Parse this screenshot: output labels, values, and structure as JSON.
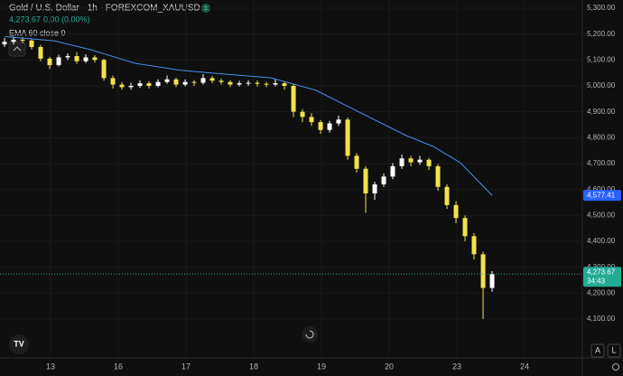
{
  "chart_data": {
    "type": "candlestick",
    "title": "Gold / U.S. Dollar · 1h · FOREXCOM_XAUUSD",
    "legend_price": "4,273.67",
    "legend_change": "0.00 (0.00%)",
    "indicator": "EMA 60 close 0",
    "up_color": "#ffffff",
    "down_color": "#f2e34b",
    "ema_color": "#4a8fe7",
    "grid": true,
    "xlim": [
      -0.747,
      7.853
    ],
    "xticks": [
      {
        "value": 0,
        "label": "13"
      },
      {
        "value": 1,
        "label": "16"
      },
      {
        "value": 2,
        "label": "17"
      },
      {
        "value": 3,
        "label": "18"
      },
      {
        "value": 4,
        "label": "19"
      },
      {
        "value": 5,
        "label": "20"
      },
      {
        "value": 6,
        "label": "23"
      },
      {
        "value": 7,
        "label": "24"
      }
    ],
    "ylim": [
      3953.5,
      5331.4
    ],
    "yticks": [
      {
        "value": 4100,
        "label": "4,100.00"
      },
      {
        "value": 4200,
        "label": "4,200.00"
      },
      {
        "value": 4300,
        "label": "4,300.00"
      },
      {
        "value": 4400,
        "label": "4,400.00"
      },
      {
        "value": 4500,
        "label": "4,500.00"
      },
      {
        "value": 4600,
        "label": "4,600.00"
      },
      {
        "value": 4700,
        "label": "4,700.00"
      },
      {
        "value": 4800,
        "label": "4,800.00"
      },
      {
        "value": 4900,
        "label": "4,900.00"
      },
      {
        "value": 5000,
        "label": "5,000.00"
      },
      {
        "value": 5100,
        "label": "5,100.00"
      },
      {
        "value": 5200,
        "label": "5,200.00"
      },
      {
        "value": 5300,
        "label": "5,300.00"
      }
    ],
    "candles": {
      "x": [
        -0.68,
        -0.547,
        -0.413,
        -0.28,
        -0.147,
        -0.013,
        0.12,
        0.253,
        0.387,
        0.52,
        0.653,
        0.787,
        0.92,
        1.053,
        1.187,
        1.32,
        1.453,
        1.587,
        1.72,
        1.853,
        1.987,
        2.12,
        2.253,
        2.387,
        2.52,
        2.653,
        2.787,
        2.92,
        3.053,
        3.187,
        3.32,
        3.453,
        3.587,
        3.72,
        3.853,
        3.987,
        4.12,
        4.253,
        4.387,
        4.52,
        4.653,
        4.787,
        4.92,
        5.053,
        5.187,
        5.32,
        5.453,
        5.587,
        5.72,
        5.853,
        5.987,
        6.12,
        6.253,
        6.387,
        6.52
      ],
      "open": [
        5160,
        5170,
        5178,
        5175,
        5150,
        5105,
        5080,
        5110,
        5115,
        5095,
        5110,
        5100,
        5030,
        5005,
        4995,
        5000,
        5010,
        5000,
        5015,
        5025,
        5005,
        5015,
        5012,
        5030,
        5020,
        5015,
        5005,
        5010,
        5012,
        5008,
        5005,
        5010,
        5000,
        4900,
        4880,
        4860,
        4830,
        4855,
        4870,
        4730,
        4680,
        4585,
        4620,
        4650,
        4690,
        4720,
        4705,
        4715,
        4690,
        4610,
        4540,
        4490,
        4420,
        4350,
        4220
      ],
      "high": [
        5185,
        5190,
        5188,
        5182,
        5158,
        5112,
        5120,
        5125,
        5130,
        5122,
        5118,
        5105,
        5040,
        5015,
        5012,
        5022,
        5018,
        5025,
        5040,
        5032,
        5025,
        5022,
        5045,
        5038,
        5028,
        5022,
        5020,
        5022,
        5020,
        5015,
        5025,
        5018,
        5005,
        4910,
        4895,
        4868,
        4865,
        4885,
        4878,
        4740,
        4690,
        4630,
        4662,
        4702,
        4735,
        4730,
        4730,
        4722,
        4698,
        4620,
        4555,
        4500,
        4432,
        4360,
        4285
      ],
      "low": [
        5150,
        5160,
        5165,
        5140,
        5095,
        5065,
        5075,
        5100,
        5085,
        5088,
        5090,
        5020,
        4990,
        4985,
        4985,
        4992,
        4990,
        4995,
        5008,
        4995,
        4998,
        5000,
        5005,
        5010,
        5005,
        4995,
        4998,
        5000,
        4998,
        4995,
        4998,
        4985,
        4880,
        4860,
        4845,
        4815,
        4820,
        4845,
        4715,
        4665,
        4510,
        4560,
        4610,
        4640,
        4680,
        4690,
        4695,
        4675,
        4595,
        4525,
        4470,
        4400,
        4330,
        4100,
        4205
      ],
      "close": [
        5170,
        5178,
        5175,
        5150,
        5105,
        5080,
        5110,
        5115,
        5095,
        5110,
        5100,
        5030,
        5005,
        4995,
        5000,
        5010,
        5000,
        5015,
        5025,
        5005,
        5015,
        5012,
        5030,
        5020,
        5015,
        5005,
        5010,
        5012,
        5008,
        5005,
        5010,
        5000,
        4900,
        4880,
        4860,
        4830,
        4855,
        4870,
        4730,
        4680,
        4585,
        4620,
        4650,
        4690,
        4720,
        4705,
        4715,
        4690,
        4610,
        4540,
        4490,
        4420,
        4350,
        4220,
        4273.67
      ]
    },
    "ema": {
      "x": [
        -0.68,
        0.053,
        0.587,
        1.253,
        1.92,
        2.587,
        3.253,
        3.92,
        4.587,
        5.253,
        5.653,
        6.053,
        6.52
      ],
      "values": [
        5190,
        5174,
        5140,
        5087,
        5060,
        5045,
        5031,
        4983,
        4895,
        4808,
        4766,
        4703,
        4577.41
      ]
    },
    "ema_label": {
      "value": 4577.41,
      "label": "4,577.41"
    },
    "last_price": {
      "value": 4273.67,
      "label": "4,273.67",
      "countdown": "34:43"
    },
    "scale_buttons": [
      "A",
      "L"
    ]
  }
}
